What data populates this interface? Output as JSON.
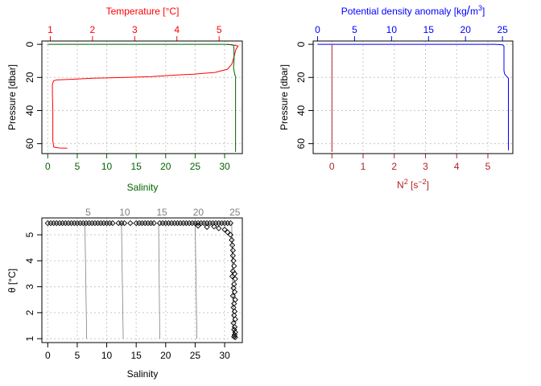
{
  "colors": {
    "temperature": "#ff0000",
    "salinity": "#006400",
    "density": "#0000ff",
    "n2": "#b22222",
    "points": "#000000",
    "isopycnal": "#808080",
    "grid": "#c8c8c8"
  },
  "chart_data": [
    {
      "type": "line",
      "panel": "top-left",
      "ylabel": "Pressure [dbar]",
      "ylim": [
        66,
        -2
      ],
      "y_ticks": [
        0,
        20,
        40,
        60
      ],
      "grid": true,
      "top_axis": {
        "label_parts": [
          "Temperature [",
          "°",
          "C]"
        ],
        "xlim": [
          0.8,
          5.55
        ],
        "ticks": [
          1,
          2,
          3,
          4,
          5
        ]
      },
      "bottom_axis": {
        "label": "Salinity",
        "xlim": [
          -1,
          33
        ],
        "ticks": [
          0,
          5,
          10,
          15,
          20,
          25,
          30
        ]
      },
      "series": [
        {
          "axis": "top",
          "variable": "temperature",
          "points": [
            [
              5.2,
              0
            ],
            [
              5.35,
              0.5
            ],
            [
              5.45,
              1
            ],
            [
              5.4,
              3
            ],
            [
              5.35,
              8
            ],
            [
              5.3,
              12
            ],
            [
              5.2,
              15
            ],
            [
              4.9,
              17
            ],
            [
              4.4,
              18
            ],
            [
              4.0,
              18.5
            ],
            [
              3.4,
              19.5
            ],
            [
              2.8,
              20
            ],
            [
              2.0,
              20.5
            ],
            [
              1.6,
              21
            ],
            [
              1.15,
              21.5
            ],
            [
              1.08,
              22
            ],
            [
              1.05,
              24
            ],
            [
              1.05,
              30
            ],
            [
              1.06,
              40
            ],
            [
              1.06,
              50
            ],
            [
              1.06,
              58
            ],
            [
              1.08,
              62
            ],
            [
              1.2,
              62.6
            ],
            [
              1.4,
              62.7
            ]
          ]
        },
        {
          "axis": "bottom",
          "variable": "salinity",
          "points": [
            [
              0,
              0
            ],
            [
              30,
              0
            ],
            [
              31,
              0.2
            ],
            [
              31.5,
              0.5
            ],
            [
              31.6,
              3
            ],
            [
              31.6,
              10
            ],
            [
              31.5,
              14
            ],
            [
              31.7,
              18
            ],
            [
              31.9,
              20
            ],
            [
              31.9,
              20.5
            ],
            [
              31.85,
              21
            ],
            [
              31.85,
              30
            ],
            [
              31.85,
              40
            ],
            [
              31.85,
              50
            ],
            [
              31.85,
              60
            ],
            [
              31.85,
              65
            ]
          ]
        }
      ]
    },
    {
      "type": "line",
      "panel": "top-right",
      "ylabel": "Pressure [dbar]",
      "ylim": [
        66,
        -2
      ],
      "y_ticks": [
        0,
        20,
        40,
        60
      ],
      "grid": true,
      "top_axis": {
        "label_parts": [
          "Potential density anomaly [kg",
          "/",
          "m",
          "3",
          "]"
        ],
        "xlim": [
          -0.6,
          26.4
        ],
        "ticks": [
          0,
          5,
          10,
          15,
          20,
          25
        ]
      },
      "bottom_axis": {
        "label_parts": [
          "N",
          "2",
          " [s",
          "−2",
          "]"
        ],
        "xlim": [
          -0.6,
          5.8
        ],
        "ticks": [
          0,
          1,
          2,
          3,
          4,
          5
        ]
      },
      "series": [
        {
          "axis": "top",
          "variable": "density",
          "points": [
            [
              0,
              0
            ],
            [
              24,
              0
            ],
            [
              25.0,
              0.3
            ],
            [
              25.2,
              1
            ],
            [
              25.2,
              10
            ],
            [
              25.2,
              16
            ],
            [
              25.3,
              18
            ],
            [
              25.6,
              19.5
            ],
            [
              25.8,
              20.5
            ],
            [
              25.8,
              30
            ],
            [
              25.8,
              45
            ],
            [
              25.8,
              64
            ]
          ]
        },
        {
          "axis": "bottom",
          "variable": "n2",
          "points": [
            [
              0,
              0
            ],
            [
              0,
              65
            ]
          ]
        }
      ]
    },
    {
      "type": "scatter",
      "panel": "bottom-left",
      "xlabel": "Salinity",
      "ylabel_parts": [
        "θ [",
        "°",
        "C]"
      ],
      "xlim": [
        -1,
        33
      ],
      "ylim": [
        0.85,
        5.65
      ],
      "x_ticks": [
        0,
        5,
        10,
        15,
        20,
        25,
        30
      ],
      "y_ticks": [
        1,
        2,
        3,
        4,
        5
      ],
      "grid": true,
      "isopycnals": [
        {
          "label": "5",
          "line": [
            [
              6.6,
              1.0
            ],
            [
              6.3,
              5.45
            ]
          ]
        },
        {
          "label": "10",
          "line": [
            [
              12.8,
              1.0
            ],
            [
              12.5,
              5.45
            ]
          ]
        },
        {
          "label": "15",
          "line": [
            [
              19.0,
              1.0
            ],
            [
              18.8,
              5.45
            ]
          ]
        },
        {
          "label": "20",
          "line": [
            [
              25.3,
              1.0
            ],
            [
              25.0,
              5.45
            ]
          ]
        },
        {
          "label": "25",
          "line": [
            [
              31.5,
              1.0
            ],
            [
              31.2,
              5.45
            ]
          ]
        }
      ],
      "points": {
        "top_row_theta": 5.45,
        "top_row_salinity": [
          0,
          0.5,
          1,
          1.5,
          2,
          2.5,
          3,
          3.5,
          4,
          4.5,
          5,
          5.5,
          6,
          6.5,
          7,
          7.5,
          8,
          8.5,
          9,
          9.5,
          10,
          10.5,
          11,
          12,
          12.5,
          13,
          14,
          15,
          15.5,
          16,
          16.5,
          17,
          17.5,
          18,
          19,
          19.5,
          20,
          20.5,
          21,
          21.5,
          22,
          22.5,
          23,
          23.5,
          24,
          24.5,
          25,
          25.5,
          26,
          26.5,
          27,
          27.5,
          28,
          28.5,
          29,
          29.5,
          30,
          30.5,
          31
        ],
        "upper_cluster": [
          [
            25.5,
            5.35
          ],
          [
            27,
            5.3
          ],
          [
            28.2,
            5.32
          ],
          [
            29,
            5.25
          ],
          [
            30,
            5.2
          ],
          [
            30.5,
            5.1
          ],
          [
            31,
            5.0
          ],
          [
            31.2,
            4.8
          ],
          [
            31.3,
            4.6
          ],
          [
            31.4,
            4.4
          ],
          [
            31.4,
            4.2
          ]
        ],
        "lower_column": [
          [
            31.5,
            4.0
          ],
          [
            31.6,
            3.8
          ],
          [
            31.4,
            3.6
          ],
          [
            31.7,
            3.5
          ],
          [
            31.3,
            3.4
          ],
          [
            31.8,
            3.3
          ],
          [
            31.6,
            3.1
          ],
          [
            31.5,
            2.95
          ],
          [
            31.7,
            2.8
          ],
          [
            31.4,
            2.65
          ],
          [
            31.8,
            2.5
          ],
          [
            31.6,
            2.35
          ],
          [
            31.5,
            2.2
          ],
          [
            31.7,
            2.05
          ],
          [
            31.6,
            1.9
          ],
          [
            31.8,
            1.75
          ],
          [
            31.5,
            1.6
          ],
          [
            31.7,
            1.45
          ],
          [
            31.6,
            1.35
          ],
          [
            31.8,
            1.25
          ],
          [
            31.7,
            1.15
          ],
          [
            31.6,
            1.08
          ],
          [
            31.8,
            1.05
          ]
        ]
      }
    }
  ]
}
